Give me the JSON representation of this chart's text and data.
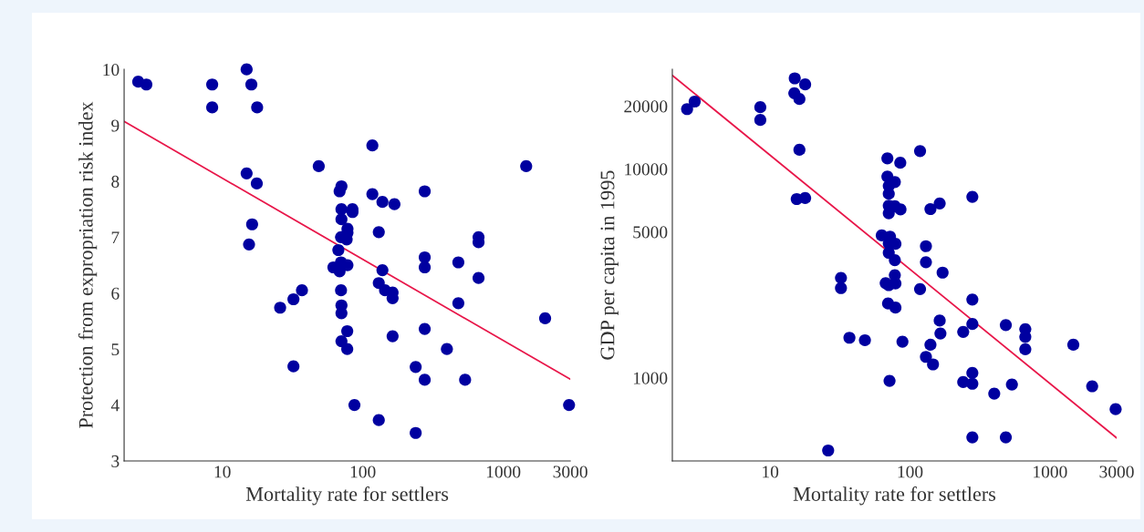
{
  "chart_data": [
    {
      "type": "scatter",
      "xlabel": "Mortality rate for settlers",
      "ylabel": "Protection from expropriation risk index",
      "log": "x",
      "xlim": [
        2,
        3000
      ],
      "xticks": [
        10,
        100,
        1000,
        3000
      ],
      "ylim": [
        3,
        10
      ],
      "yticks": [
        3,
        4,
        5,
        6,
        7,
        8,
        9,
        10
      ],
      "grid": false,
      "legend": false,
      "series": [
        {
          "marker": "circle",
          "color": "#0000a0",
          "x": [
            2.52,
            2.88,
            8.47,
            8.47,
            14.9,
            16.1,
            17.7,
            14.9,
            17.6,
            16.3,
            15.5,
            25.8,
            32.1,
            36.9,
            32.1,
            48.6,
            117,
            1456,
            70.5,
            68.4,
            276,
            117,
            138,
            168,
            70.5,
            84.4,
            84.5,
            70.5,
            130,
            77.8,
            77.8,
            70,
            76.8,
            667,
            667,
            67,
            70,
            77.8,
            61.8,
            68.4,
            276,
            276,
            479,
            138,
            667,
            130,
            144,
            163,
            163,
            70,
            479,
            70.5,
            70.5,
            1986,
            276,
            77.5,
            70.5,
            77.5,
            163,
            397,
            238,
            276,
            535,
            87.2,
            2940,
            130,
            238
          ],
          "values": [
            9.78,
            9.73,
            9.73,
            9.32,
            10.0,
            9.73,
            9.32,
            8.14,
            7.96,
            7.23,
            6.87,
            5.74,
            5.89,
            6.05,
            4.69,
            8.27,
            8.64,
            8.27,
            7.91,
            7.82,
            7.82,
            7.77,
            7.63,
            7.59,
            7.5,
            7.5,
            7.45,
            7.32,
            7.09,
            7.15,
            7.08,
            7.0,
            6.96,
            7.0,
            6.91,
            6.77,
            6.55,
            6.5,
            6.46,
            6.39,
            6.64,
            6.46,
            6.55,
            6.41,
            6.27,
            6.18,
            6.05,
            6.01,
            5.91,
            6.05,
            5.82,
            5.78,
            5.64,
            5.55,
            5.36,
            5.32,
            5.14,
            5.0,
            5.23,
            5.0,
            4.68,
            4.45,
            4.45,
            4.0,
            4.0,
            3.73,
            3.5
          ]
        },
        {
          "type": "line",
          "marker": "none",
          "color": "#e8174a",
          "x": [
            2,
            3000
          ],
          "values": [
            9.07,
            4.46
          ]
        }
      ]
    },
    {
      "type": "scatter",
      "xlabel": "Mortality rate for settlers",
      "ylabel": "GDP per capita in 1995",
      "log": "xy",
      "xlim": [
        2,
        3000
      ],
      "xticks": [
        10,
        100,
        1000,
        3000
      ],
      "ylim": [
        400,
        30000
      ],
      "yticks": [
        1000,
        5000,
        10000,
        20000
      ],
      "grid": false,
      "legend": false,
      "series": [
        {
          "marker": "circle",
          "color": "#0000a0",
          "x": [
            2.55,
            2.89,
            8.51,
            8.51,
            15.0,
            14.9,
            16.2,
            17.8,
            16.2,
            15.5,
            17.8,
            32.1,
            32.1,
            36.9,
            47.6,
            26.0,
            118,
            68.9,
            85.2,
            68.9,
            77.9,
            70.5,
            70.5,
            279,
            163,
            140,
            70.5,
            77.9,
            85.5,
            70.5,
            62.8,
            72,
            70.5,
            78.7,
            70.5,
            130,
            77.9,
            130,
            171,
            77.9,
            118,
            67,
            70.5,
            78.7,
            279,
            69.7,
            78.7,
            163,
            279,
            484,
            667,
            667,
            667,
            1470,
            165,
            240,
            88.3,
            140,
            130,
            146,
            71.4,
            240,
            279,
            279,
            400,
            535,
            2005,
            2950,
            279,
            484
          ],
          "values": [
            19360,
            21040,
            19770,
            17180,
            27170,
            23070,
            21640,
            25410,
            12360,
            7180,
            7260,
            3010,
            2690,
            1556,
            1514,
            449,
            12190,
            11250,
            10710,
            9200,
            8660,
            8300,
            7610,
            7360,
            6840,
            6430,
            6670,
            6630,
            6400,
            6140,
            4810,
            4740,
            4400,
            4380,
            3970,
            4270,
            3660,
            3580,
            3190,
            3100,
            2660,
            2840,
            2780,
            2830,
            2370,
            2270,
            2170,
            1880,
            1810,
            1790,
            1710,
            1570,
            1370,
            1440,
            1630,
            1660,
            1490,
            1440,
            1260,
            1160,
            967,
            954,
            1055,
            937,
            840,
            929,
            911,
            708,
            519,
            519
          ]
        },
        {
          "type": "line",
          "marker": "none",
          "color": "#e8174a",
          "x": [
            2,
            3000
          ],
          "values": [
            28070,
            515
          ]
        }
      ]
    }
  ]
}
